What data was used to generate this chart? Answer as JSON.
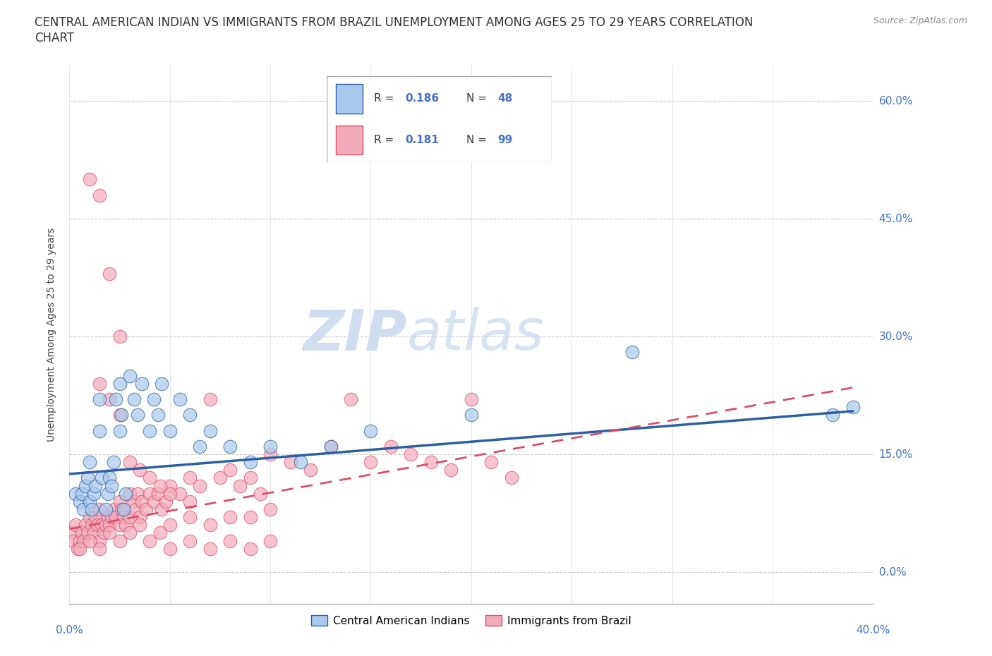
{
  "title_line1": "CENTRAL AMERICAN INDIAN VS IMMIGRANTS FROM BRAZIL UNEMPLOYMENT AMONG AGES 25 TO 29 YEARS CORRELATION",
  "title_line2": "CHART",
  "source_text": "Source: ZipAtlas.com",
  "ylabel_ticks": [
    "0.0%",
    "15.0%",
    "30.0%",
    "45.0%",
    "60.0%"
  ],
  "ytick_vals": [
    0.0,
    0.15,
    0.3,
    0.45,
    0.6
  ],
  "ylabel_label": "Unemployment Among Ages 25 to 29 years",
  "legend_blue_r": "0.186",
  "legend_blue_n": "48",
  "legend_pink_r": "0.181",
  "legend_pink_n": "99",
  "legend_label_blue": "Central American Indians",
  "legend_label_pink": "Immigrants from Brazil",
  "blue_color": "#A8C8EC",
  "pink_color": "#F2AABB",
  "trend_blue_color": "#2E5FA3",
  "trend_pink_color": "#D94F6A",
  "tick_color": "#4472C4",
  "watermark_zip": "ZIP",
  "watermark_atlas": "atlas",
  "xmin": 0.0,
  "xmax": 0.4,
  "ymin": -0.04,
  "ymax": 0.645,
  "blue_scatter_x": [
    0.003,
    0.005,
    0.006,
    0.007,
    0.008,
    0.009,
    0.01,
    0.01,
    0.011,
    0.012,
    0.013,
    0.015,
    0.015,
    0.016,
    0.018,
    0.019,
    0.02,
    0.021,
    0.022,
    0.023,
    0.025,
    0.025,
    0.026,
    0.027,
    0.028,
    0.03,
    0.032,
    0.034,
    0.036,
    0.04,
    0.042,
    0.044,
    0.046,
    0.05,
    0.055,
    0.06,
    0.065,
    0.07,
    0.08,
    0.09,
    0.1,
    0.115,
    0.13,
    0.15,
    0.2,
    0.28,
    0.38,
    0.39
  ],
  "blue_scatter_y": [
    0.1,
    0.09,
    0.1,
    0.08,
    0.11,
    0.12,
    0.09,
    0.14,
    0.08,
    0.1,
    0.11,
    0.22,
    0.18,
    0.12,
    0.08,
    0.1,
    0.12,
    0.11,
    0.14,
    0.22,
    0.24,
    0.18,
    0.2,
    0.08,
    0.1,
    0.25,
    0.22,
    0.2,
    0.24,
    0.18,
    0.22,
    0.2,
    0.24,
    0.18,
    0.22,
    0.2,
    0.16,
    0.18,
    0.16,
    0.14,
    0.16,
    0.14,
    0.16,
    0.18,
    0.2,
    0.28,
    0.2,
    0.21
  ],
  "pink_scatter_x": [
    0.001,
    0.002,
    0.003,
    0.004,
    0.005,
    0.006,
    0.007,
    0.008,
    0.009,
    0.01,
    0.011,
    0.012,
    0.013,
    0.014,
    0.015,
    0.015,
    0.016,
    0.017,
    0.018,
    0.019,
    0.02,
    0.021,
    0.022,
    0.023,
    0.025,
    0.025,
    0.026,
    0.027,
    0.028,
    0.03,
    0.03,
    0.032,
    0.033,
    0.034,
    0.035,
    0.036,
    0.038,
    0.04,
    0.042,
    0.044,
    0.046,
    0.048,
    0.05,
    0.055,
    0.06,
    0.065,
    0.07,
    0.075,
    0.08,
    0.085,
    0.09,
    0.095,
    0.1,
    0.11,
    0.12,
    0.13,
    0.14,
    0.15,
    0.16,
    0.17,
    0.18,
    0.19,
    0.2,
    0.21,
    0.22,
    0.005,
    0.01,
    0.015,
    0.02,
    0.025,
    0.03,
    0.035,
    0.04,
    0.045,
    0.05,
    0.06,
    0.07,
    0.08,
    0.09,
    0.1,
    0.05,
    0.06,
    0.07,
    0.08,
    0.09,
    0.1,
    0.015,
    0.02,
    0.025,
    0.03,
    0.035,
    0.04,
    0.045,
    0.05,
    0.06,
    0.01,
    0.015,
    0.02,
    0.025
  ],
  "pink_scatter_y": [
    0.05,
    0.04,
    0.06,
    0.03,
    0.04,
    0.05,
    0.04,
    0.06,
    0.05,
    0.07,
    0.06,
    0.05,
    0.07,
    0.06,
    0.08,
    0.04,
    0.06,
    0.05,
    0.06,
    0.07,
    0.06,
    0.07,
    0.08,
    0.07,
    0.09,
    0.06,
    0.08,
    0.07,
    0.06,
    0.1,
    0.07,
    0.09,
    0.08,
    0.1,
    0.07,
    0.09,
    0.08,
    0.1,
    0.09,
    0.1,
    0.08,
    0.09,
    0.11,
    0.1,
    0.12,
    0.11,
    0.22,
    0.12,
    0.13,
    0.11,
    0.12,
    0.1,
    0.15,
    0.14,
    0.13,
    0.16,
    0.22,
    0.14,
    0.16,
    0.15,
    0.14,
    0.13,
    0.22,
    0.14,
    0.12,
    0.03,
    0.04,
    0.03,
    0.05,
    0.04,
    0.05,
    0.06,
    0.04,
    0.05,
    0.06,
    0.07,
    0.06,
    0.07,
    0.07,
    0.08,
    0.03,
    0.04,
    0.03,
    0.04,
    0.03,
    0.04,
    0.24,
    0.22,
    0.2,
    0.14,
    0.13,
    0.12,
    0.11,
    0.1,
    0.09,
    0.5,
    0.48,
    0.38,
    0.3
  ],
  "blue_trend_x0": 0.0,
  "blue_trend_y0": 0.125,
  "blue_trend_x1": 0.39,
  "blue_trend_y1": 0.205,
  "pink_trend_x0": 0.0,
  "pink_trend_y0": 0.055,
  "pink_trend_x1": 0.39,
  "pink_trend_y1": 0.235,
  "title_fontsize": 12,
  "axis_label_fontsize": 10,
  "tick_fontsize": 11
}
